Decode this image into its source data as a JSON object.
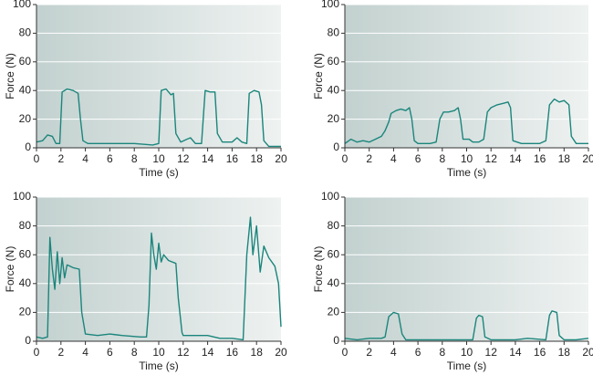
{
  "chart_data": [
    {
      "type": "line",
      "xlabel": "Time (s)",
      "ylabel": "Force (N)",
      "color": "#1b857c",
      "grid": true,
      "xlim": [
        0,
        20
      ],
      "ylim": [
        0,
        100
      ],
      "xticks": [
        0,
        2,
        4,
        6,
        8,
        10,
        12,
        14,
        16,
        18,
        20
      ],
      "yticks": [
        0,
        20,
        40,
        60,
        80,
        100
      ],
      "x": [
        0,
        0.5,
        0.9,
        1.3,
        1.6,
        1.9,
        2.1,
        2.5,
        3.0,
        3.4,
        3.6,
        3.8,
        4.2,
        6,
        8,
        9.5,
        10,
        10.2,
        10.6,
        11.0,
        11.2,
        11.4,
        11.8,
        12.3,
        12.6,
        13.0,
        13.5,
        13.8,
        14.2,
        14.6,
        14.8,
        15.2,
        16,
        16.4,
        16.8,
        17.2,
        17.4,
        17.8,
        18.2,
        18.4,
        18.6,
        19,
        20
      ],
      "values": [
        4,
        5,
        9,
        8,
        3,
        3,
        39,
        41,
        40,
        38,
        20,
        5,
        3,
        3,
        3,
        2,
        3,
        40,
        41,
        37,
        38,
        10,
        4,
        6,
        7,
        3,
        3,
        40,
        39,
        39,
        10,
        4,
        4,
        7,
        4,
        3,
        38,
        40,
        39,
        30,
        5,
        1,
        1
      ]
    },
    {
      "type": "line",
      "xlabel": "Time (s)",
      "ylabel": "Force (N)",
      "color": "#1b857c",
      "grid": true,
      "xlim": [
        0,
        20
      ],
      "ylim": [
        0,
        100
      ],
      "xticks": [
        0,
        2,
        4,
        6,
        8,
        10,
        12,
        14,
        16,
        18,
        20
      ],
      "yticks": [
        0,
        20,
        40,
        60,
        80,
        100
      ],
      "x": [
        0,
        0.5,
        1,
        1.5,
        2,
        2.5,
        3,
        3.3,
        3.6,
        3.8,
        4.2,
        4.6,
        5,
        5.3,
        5.5,
        5.7,
        6,
        7,
        7.5,
        7.8,
        8.1,
        8.5,
        9,
        9.3,
        9.5,
        9.7,
        10.2,
        10.5,
        11,
        11.4,
        11.7,
        12,
        12.5,
        13,
        13.4,
        13.6,
        13.8,
        14.5,
        16,
        16.5,
        16.8,
        17.2,
        17.6,
        18,
        18.4,
        18.6,
        19,
        20
      ],
      "values": [
        3,
        6,
        4,
        5,
        4,
        6,
        8,
        12,
        18,
        24,
        26,
        27,
        26,
        28,
        20,
        5,
        3,
        3,
        4,
        20,
        25,
        25,
        26,
        28,
        20,
        6,
        6,
        4,
        4,
        6,
        25,
        28,
        30,
        31,
        32,
        28,
        5,
        3,
        3,
        5,
        30,
        34,
        32,
        33,
        30,
        8,
        3,
        3
      ]
    },
    {
      "type": "line",
      "xlabel": "Time (s)",
      "ylabel": "Force (N)",
      "color": "#1b857c",
      "grid": true,
      "xlim": [
        0,
        20
      ],
      "ylim": [
        0,
        100
      ],
      "xticks": [
        0,
        2,
        4,
        6,
        8,
        10,
        12,
        14,
        16,
        18,
        20
      ],
      "yticks": [
        0,
        20,
        40,
        60,
        80,
        100
      ],
      "x": [
        0,
        0.5,
        0.9,
        1.1,
        1.3,
        1.5,
        1.7,
        1.9,
        2.1,
        2.3,
        2.5,
        3,
        3.5,
        3.7,
        4,
        5,
        6,
        7,
        8.5,
        9,
        9.2,
        9.4,
        9.6,
        9.8,
        10,
        10.2,
        10.4,
        10.8,
        11.4,
        11.6,
        11.9,
        12,
        13,
        14,
        15,
        16,
        16.9,
        17.2,
        17.5,
        17.7,
        18,
        18.3,
        18.6,
        19,
        19.5,
        19.8,
        20
      ],
      "values": [
        3,
        2,
        3,
        72,
        50,
        36,
        62,
        40,
        58,
        44,
        53,
        51,
        50,
        20,
        5,
        4,
        5,
        4,
        3,
        3,
        25,
        75,
        60,
        50,
        68,
        55,
        60,
        56,
        54,
        30,
        6,
        4,
        4,
        4,
        2,
        2,
        1,
        60,
        86,
        60,
        80,
        48,
        66,
        58,
        52,
        40,
        10
      ]
    },
    {
      "type": "line",
      "xlabel": "Time (s)",
      "ylabel": "Force (N)",
      "color": "#1b857c",
      "grid": true,
      "xlim": [
        0,
        20
      ],
      "ylim": [
        0,
        100
      ],
      "xticks": [
        0,
        2,
        4,
        6,
        8,
        10,
        12,
        14,
        16,
        18,
        20
      ],
      "yticks": [
        0,
        20,
        40,
        60,
        80,
        100
      ],
      "x": [
        0,
        1,
        2,
        3,
        3.3,
        3.6,
        4,
        4.4,
        4.7,
        5,
        7,
        9,
        10.5,
        10.8,
        11,
        11.3,
        11.5,
        12,
        14,
        15,
        16.5,
        16.8,
        17,
        17.4,
        17.6,
        18,
        19,
        20
      ],
      "values": [
        2,
        1,
        2,
        2,
        3,
        17,
        20,
        19,
        5,
        1,
        1,
        1,
        1,
        16,
        18,
        17,
        3,
        1,
        1,
        2,
        1,
        18,
        21,
        20,
        4,
        1,
        1,
        2
      ]
    }
  ]
}
